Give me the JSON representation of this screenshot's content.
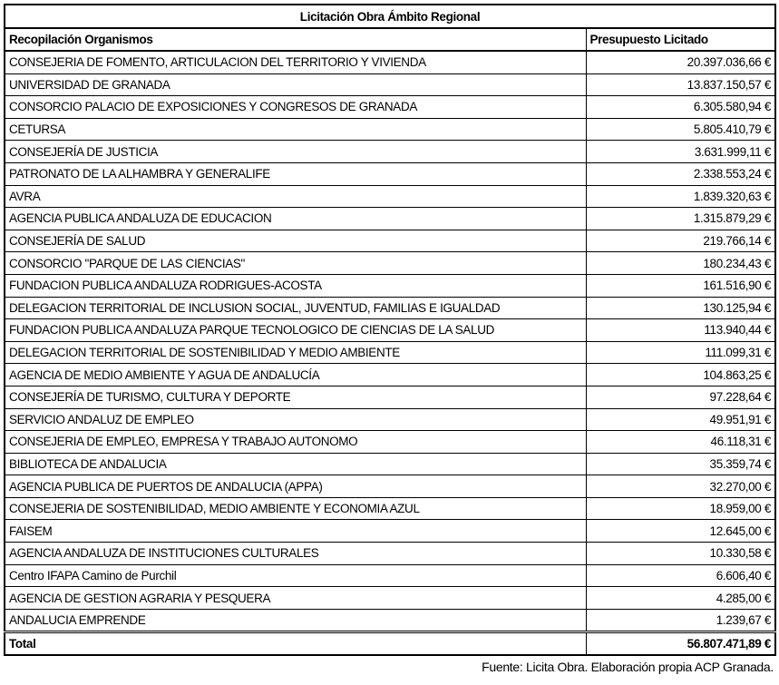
{
  "title": "Licitación Obra Ámbito Regional",
  "headers": {
    "organismo": "Recopilación Organismos",
    "presupuesto": "Presupuesto Licitado"
  },
  "rows": [
    {
      "organismo": "CONSEJERIA DE FOMENTO, ARTICULACION DEL TERRITORIO Y VIVIENDA",
      "presupuesto": "20.397.036,66 €"
    },
    {
      "organismo": "UNIVERSIDAD DE GRANADA",
      "presupuesto": "13.837.150,57 €"
    },
    {
      "organismo": "CONSORCIO PALACIO DE EXPOSICIONES Y CONGRESOS DE GRANADA",
      "presupuesto": "6.305.580,94 €"
    },
    {
      "organismo": "CETURSA",
      "presupuesto": "5.805.410,79 €"
    },
    {
      "organismo": "CONSEJERÍA DE JUSTICIA",
      "presupuesto": "3.631.999,11 €"
    },
    {
      "organismo": "PATRONATO DE LA ALHAMBRA Y GENERALIFE",
      "presupuesto": "2.338.553,24 €"
    },
    {
      "organismo": "AVRA",
      "presupuesto": "1.839.320,63 €"
    },
    {
      "organismo": "AGENCIA PUBLICA ANDALUZA DE EDUCACION",
      "presupuesto": "1.315.879,29 €"
    },
    {
      "organismo": "CONSEJERÍA DE SALUD",
      "presupuesto": "219.766,14 €"
    },
    {
      "organismo": "CONSORCIO \"PARQUE DE LAS CIENCIAS\"",
      "presupuesto": "180.234,43 €"
    },
    {
      "organismo": "FUNDACION PUBLICA ANDALUZA RODRIGUES-ACOSTA",
      "presupuesto": "161.516,90 €"
    },
    {
      "organismo": "DELEGACION TERRITORIAL DE INCLUSION SOCIAL, JUVENTUD, FAMILIAS E IGUALDAD",
      "presupuesto": "130.125,94 €"
    },
    {
      "organismo": "FUNDACION PUBLICA ANDALUZA PARQUE TECNOLOGICO DE CIENCIAS DE LA SALUD",
      "presupuesto": "113.940,44 €"
    },
    {
      "organismo": "DELEGACION TERRITORIAL DE SOSTENIBILIDAD Y MEDIO AMBIENTE",
      "presupuesto": "111.099,31 €"
    },
    {
      "organismo": "AGENCIA DE MEDIO AMBIENTE Y AGUA DE ANDALUCÍA",
      "presupuesto": "104.863,25 €"
    },
    {
      "organismo": "CONSEJERÍA DE TURISMO, CULTURA Y DEPORTE",
      "presupuesto": "97.228,64 €"
    },
    {
      "organismo": "SERVICIO ANDALUZ DE EMPLEO",
      "presupuesto": "49.951,91 €"
    },
    {
      "organismo": "CONSEJERIA DE EMPLEO, EMPRESA Y TRABAJO AUTONOMO",
      "presupuesto": "46.118,31 €"
    },
    {
      "organismo": "BIBLIOTECA DE ANDALUCIA",
      "presupuesto": "35.359,74 €"
    },
    {
      "organismo": "AGENCIA PUBLICA DE PUERTOS DE ANDALUCIA (APPA)",
      "presupuesto": "32.270,00 €"
    },
    {
      "organismo": "CONSEJERIA DE SOSTENIBILIDAD, MEDIO AMBIENTE Y ECONOMIA AZUL",
      "presupuesto": "18.959,00 €"
    },
    {
      "organismo": "FAISEM",
      "presupuesto": "12.645,00 €"
    },
    {
      "organismo": "AGENCIA ANDALUZA DE INSTITUCIONES CULTURALES",
      "presupuesto": "10.330,58 €"
    },
    {
      "organismo": "Centro IFAPA Camino de Purchil",
      "presupuesto": "6.606,40 €"
    },
    {
      "organismo": "AGENCIA DE GESTION AGRARIA Y PESQUERA",
      "presupuesto": "4.285,00 €"
    },
    {
      "organismo": "ANDALUCIA EMPRENDE",
      "presupuesto": "1.239,67 €"
    }
  ],
  "total": {
    "label": "Total",
    "presupuesto": "56.807.471,89 €"
  },
  "footer": "Fuente: Licita Obra. Elaboración propia ACP Granada."
}
